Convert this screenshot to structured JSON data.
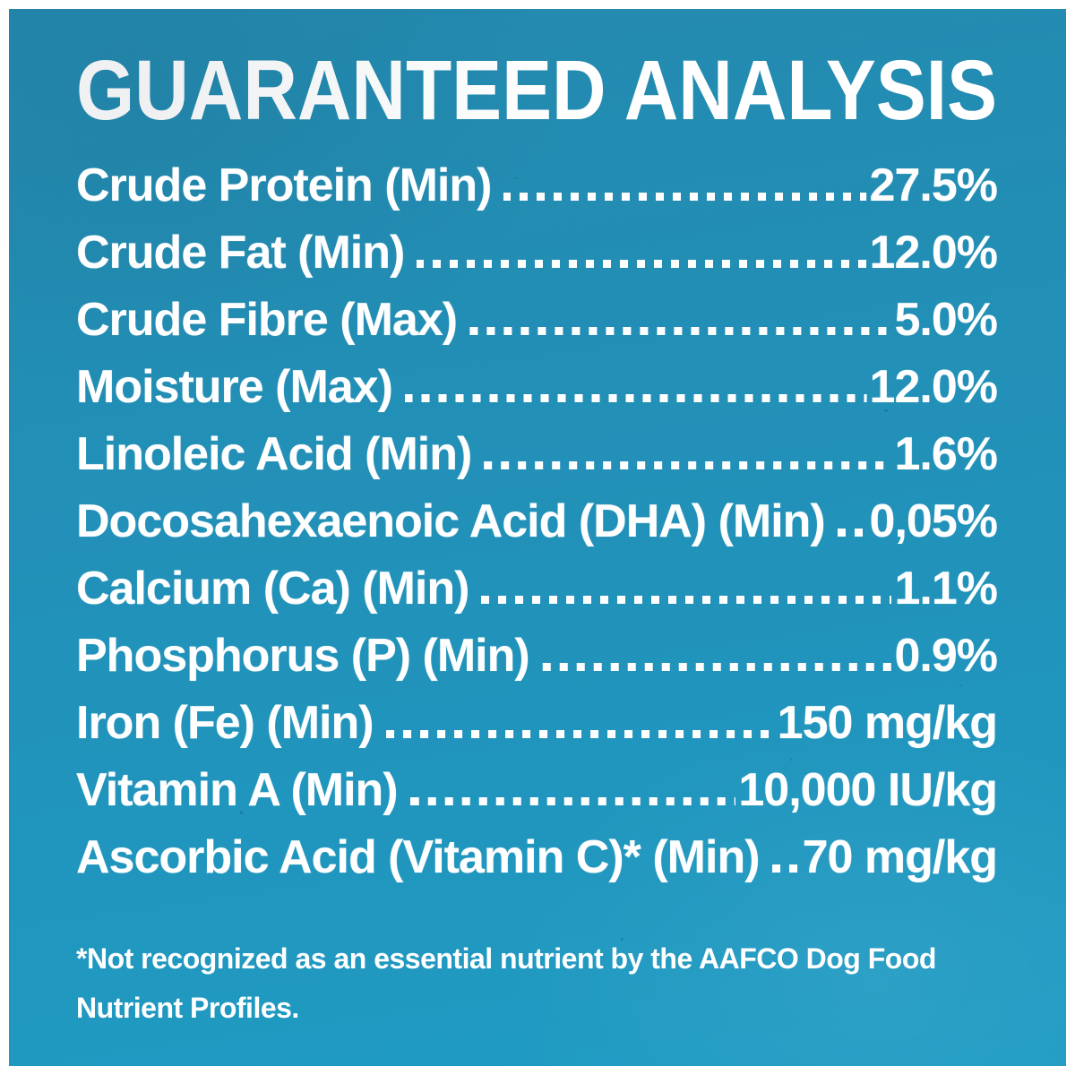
{
  "colors": {
    "background_top": "#2489ae",
    "background_mid": "#2192ba",
    "background_bottom": "#1f9cc4",
    "frame": "#ffffff",
    "text": "#ffffff"
  },
  "title": "GUARANTEED ANALYSIS",
  "analysis": {
    "rows": [
      {
        "label": "Crude Protein (Min)",
        "value": "27.5%"
      },
      {
        "label": "Crude Fat (Min)",
        "value": "12.0%"
      },
      {
        "label": "Crude Fibre (Max)",
        "value": "5.0%"
      },
      {
        "label": "Moisture (Max)",
        "value": "12.0%"
      },
      {
        "label": "Linoleic Acid (Min)",
        "value": "1.6%"
      },
      {
        "label": "Docosahexaenoic Acid (DHA) (Min)",
        "value": "0,05%"
      },
      {
        "label": "Calcium (Ca) (Min)",
        "value": "1.1%"
      },
      {
        "label": "Phosphorus (P) (Min)",
        "value": "0.9%"
      },
      {
        "label": "Iron (Fe) (Min)",
        "value": "150 mg/kg"
      },
      {
        "label": "Vitamin A (Min)",
        "value": "10,000 IU/kg"
      },
      {
        "label": "Ascorbic Acid (Vitamin C)* (Min)",
        "value": "70 mg/kg"
      }
    ]
  },
  "footnote": {
    "lines": [
      "*Not recognized as an essential nutrient by the AAFCO Dog Food",
      "Nutrient Profiles."
    ]
  }
}
